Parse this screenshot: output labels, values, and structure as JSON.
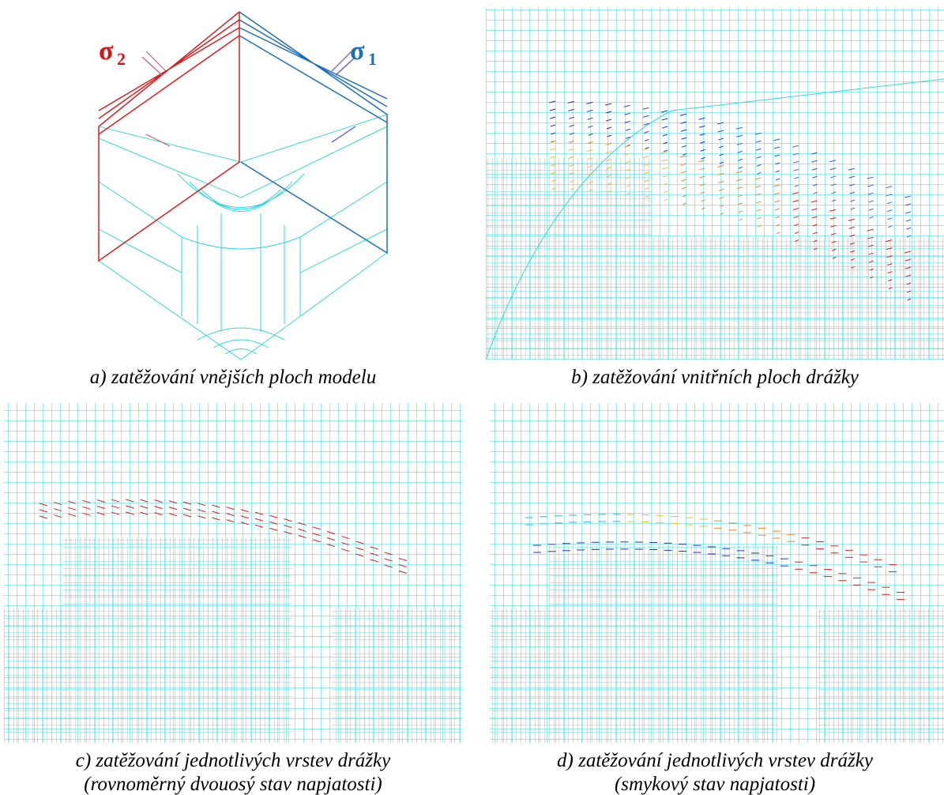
{
  "panels": [
    {
      "labels": [
        {
          "symbol": "σ",
          "subscript": "2"
        },
        {
          "symbol": "σ",
          "subscript": "1"
        }
      ],
      "caption": "a) zatěžování vnějších ploch modelu"
    },
    {
      "caption": "b) zatěžování vnitřních ploch drážky"
    },
    {
      "caption": [
        "c) zatěžování jednotlivých vrstev drážky",
        "(rovnoměrný dvouosý stav napjatosti)"
      ]
    },
    {
      "caption": [
        "d) zatěžování jednotlivých vrstev drážky",
        "(smykový stav napjatosti)"
      ]
    }
  ]
}
